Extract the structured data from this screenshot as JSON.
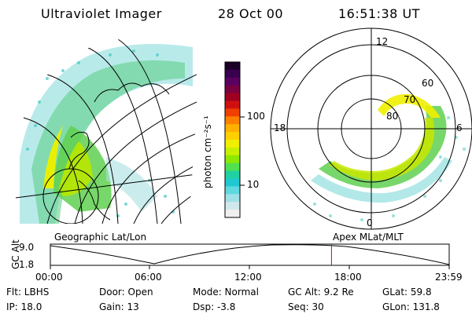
{
  "header": {
    "instrument": "Ultraviolet Imager",
    "date": "28 Oct 00",
    "time": "16:51:38 UT"
  },
  "colorbar": {
    "unit_label": "photon cm⁻²s⁻¹",
    "ticks": [
      "100",
      "10"
    ],
    "colors": [
      "#1a0026",
      "#3a0050",
      "#5a0060",
      "#7a0040",
      "#a00020",
      "#d01010",
      "#f04000",
      "#ff8000",
      "#ffb000",
      "#ffd000",
      "#f0f000",
      "#c8f000",
      "#8ee800",
      "#50e050",
      "#20d0a0",
      "#20c8d0",
      "#60d8e0",
      "#a0e0e8",
      "#d0e8ec",
      "#f0f0f0"
    ]
  },
  "left_panel": {
    "label": "Geographic Lat/Lon"
  },
  "right_panel": {
    "label": "Apex  MLat/MLT",
    "mlt_labels": {
      "top": "12",
      "left": "18",
      "right": "6",
      "bottom": "0"
    },
    "lat_labels": [
      "60",
      "70",
      "80"
    ]
  },
  "timeline": {
    "axis_label": "GC Alt",
    "y_ticks": [
      "9.0",
      "1.8"
    ],
    "x_ticks": [
      "00:00",
      "06:00",
      "12:00",
      "18:00",
      "23:59"
    ],
    "cursor_fraction": 0.705,
    "cursor_color": "#e00000"
  },
  "info": {
    "flt": "Flt: LBHS",
    "ip": "IP: 18.0",
    "door": "Door: Open",
    "gain": "Gain: 13",
    "mode": "Mode: Normal",
    "dsp": "Dsp:    -3.8",
    "gc_alt": "GC Alt: 9.2 Re",
    "seq": "Seq: 30",
    "glat": "GLat:  59.8",
    "glon": "GLon: 131.8"
  }
}
